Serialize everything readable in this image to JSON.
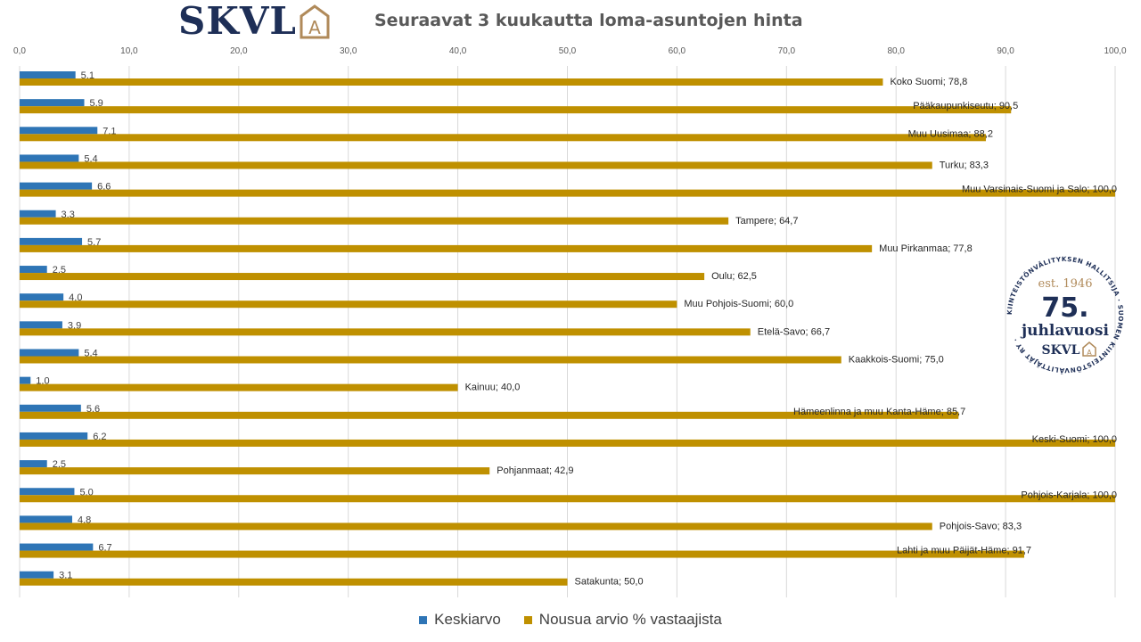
{
  "logo": {
    "text": "SKVL",
    "mark_letter": "A"
  },
  "seal": {
    "ring_text": "KIINTEISTÖNVÄLITYKSEN HALLITSIJA · SUOMEN KIINTEISTÖNVÄLITTÄJÄT RY ·",
    "est": "est. 1946",
    "big": "75.",
    "line": "juhlavuosi",
    "brand": "SKVL",
    "brand_mark": "A"
  },
  "colors": {
    "series_avg": "#2e75b6",
    "series_pct": "#bf9000",
    "navy": "#1e2f57",
    "gold": "#b08a5a"
  },
  "chart_data": {
    "type": "bar",
    "orientation": "horizontal",
    "title": "Seuraavat 3 kuukautta loma-asuntojen hinta",
    "xlim": [
      0,
      100
    ],
    "x_ticks": [
      "0,0",
      "10,0",
      "20,0",
      "30,0",
      "40,0",
      "50,0",
      "60,0",
      "70,0",
      "80,0",
      "90,0",
      "100,0"
    ],
    "x_axis_position": "top",
    "grid": true,
    "legend_position": "bottom",
    "categories": [
      "Koko Suomi",
      "Pääkaupunkiseutu",
      "Muu Uusimaa",
      "Turku",
      "Muu Varsinais-Suomi ja Salo",
      "Tampere",
      "Muu Pirkanmaa",
      "Oulu",
      "Muu Pohjois-Suomi",
      "Etelä-Savo",
      "Kaakkois-Suomi",
      "Kainuu",
      "Hämeenlinna ja muu Kanta-Häme",
      "Keski-Suomi",
      "Pohjanmaat",
      "Pohjois-Karjala",
      "Pohjois-Savo",
      "Lahti ja muu Päijät-Häme",
      "Satakunta"
    ],
    "series": [
      {
        "name": "Keskiarvo",
        "values": [
          5.1,
          5.9,
          7.1,
          5.4,
          6.6,
          3.3,
          5.7,
          2.5,
          4.0,
          3.9,
          5.4,
          1.0,
          5.6,
          6.2,
          2.5,
          5.0,
          4.8,
          6.7,
          3.1
        ],
        "labels": [
          "5,1",
          "5,9",
          "7,1",
          "5,4",
          "6,6",
          "3,3",
          "5,7",
          "2,5",
          "4,0",
          "3,9",
          "5,4",
          "1,0",
          "5,6",
          "6,2",
          "2,5",
          "5,0",
          "4,8",
          "6,7",
          "3,1"
        ]
      },
      {
        "name": "Nousua arvio % vastaajista",
        "values": [
          78.8,
          90.5,
          88.2,
          83.3,
          100.0,
          64.7,
          77.8,
          62.5,
          60.0,
          66.7,
          75.0,
          40.0,
          85.7,
          100.0,
          42.9,
          100.0,
          83.3,
          91.7,
          50.0
        ],
        "labels": [
          "Koko Suomi; 78,8",
          "Pääkaupunkiseutu; 90,5",
          "Muu Uusimaa; 88,2",
          "Turku; 83,3",
          "Muu Varsinais-Suomi ja Salo; 100,0",
          "Tampere;  64,7",
          "Muu Pirkanmaa; 77,8",
          "Oulu; 62,5",
          "Muu Pohjois-Suomi; 60,0",
          "Etelä-Savo; 66,7",
          "Kaakkois-Suomi; 75,0",
          "Kainuu; 40,0",
          "Hämeenlinna ja muu Kanta-Häme; 85,7",
          "Keski-Suomi; 100,0",
          "Pohjanmaat; 42,9",
          "Pohjois-Karjala; 100,0",
          "Pohjois-Savo; 83,3",
          "Lahti ja muu Päijät-Häme; 91,7",
          "Satakunta; 50,0"
        ]
      }
    ]
  }
}
